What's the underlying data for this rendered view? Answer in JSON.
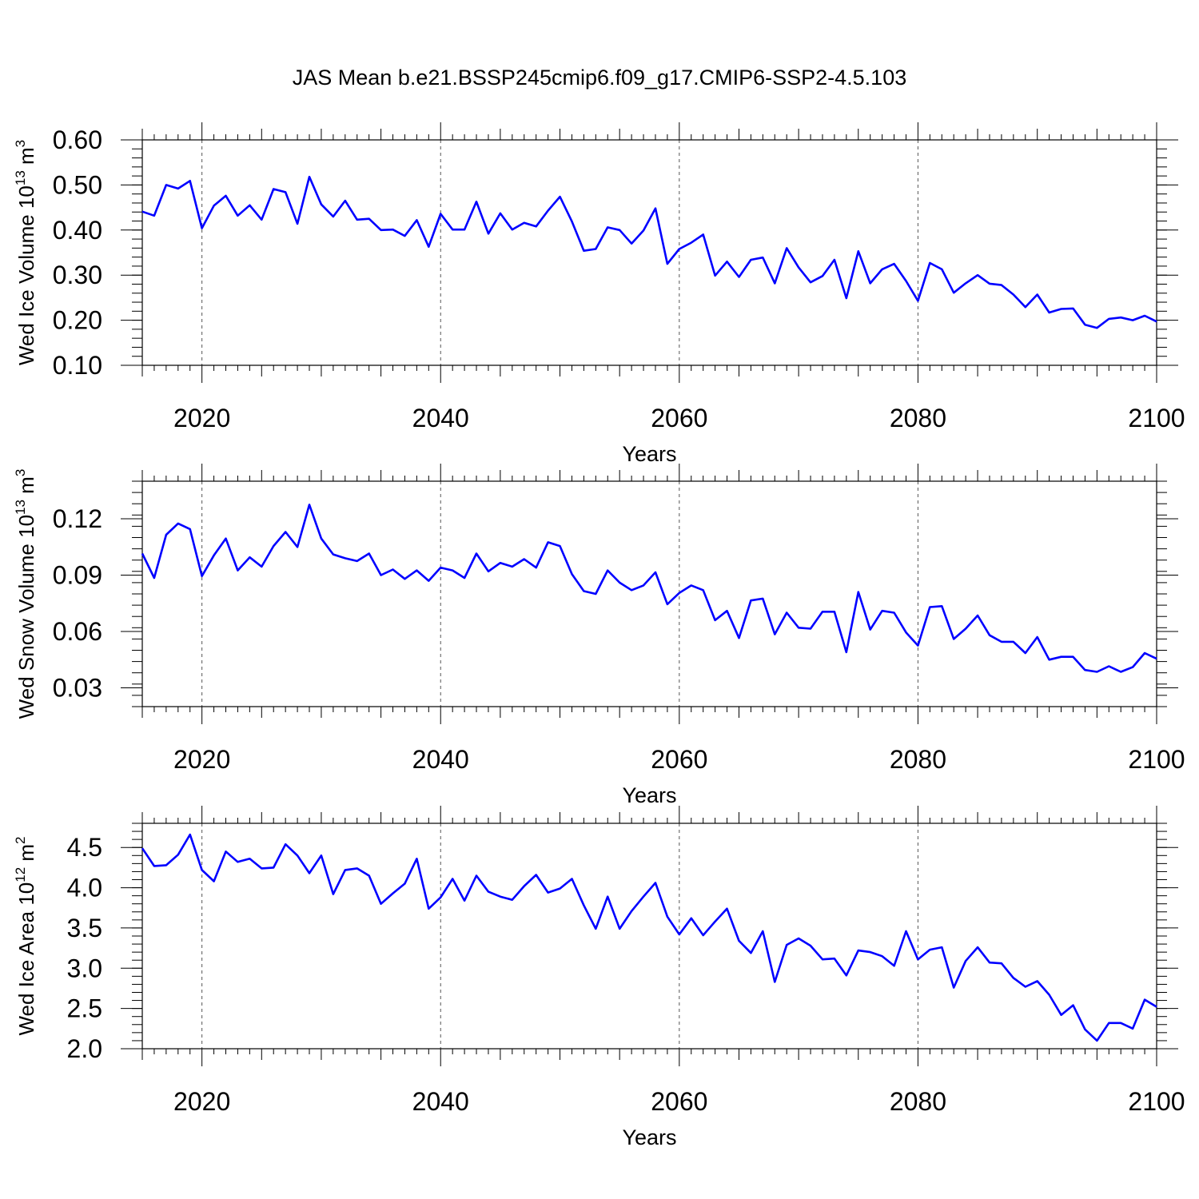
{
  "title": "JAS Mean b.e21.BSSP245cmip6.f09_g17.CMIP6-SSP2-4.5.103",
  "line_color": "#0000ff",
  "chart_data": [
    {
      "type": "line",
      "xlabel": "Years",
      "ylabel": {
        "base": "Wed Ice Volume 10",
        "exp": "13",
        "unit": " m",
        "unit_exp": "3"
      },
      "xlim": [
        2015,
        2100
      ],
      "ylim": [
        0.1,
        0.6
      ],
      "xticks": [
        2020,
        2040,
        2060,
        2080,
        2100
      ],
      "yticks": [
        0.1,
        0.2,
        0.3,
        0.4,
        0.5,
        0.6
      ],
      "ytick_labels": [
        "0.10",
        "0.20",
        "0.30",
        "0.40",
        "0.50",
        "0.60"
      ],
      "x_start": 2015,
      "series": [
        {
          "values": [
            0.441,
            0.432,
            0.5,
            0.492,
            0.509,
            0.404,
            0.454,
            0.476,
            0.432,
            0.455,
            0.423,
            0.491,
            0.484,
            0.414,
            0.518,
            0.457,
            0.43,
            0.465,
            0.423,
            0.425,
            0.4,
            0.401,
            0.387,
            0.422,
            0.363,
            0.436,
            0.401,
            0.401,
            0.463,
            0.392,
            0.437,
            0.401,
            0.416,
            0.408,
            0.443,
            0.474,
            0.419,
            0.354,
            0.358,
            0.406,
            0.4,
            0.37,
            0.399,
            0.448,
            0.325,
            0.358,
            0.372,
            0.39,
            0.299,
            0.33,
            0.296,
            0.334,
            0.339,
            0.282,
            0.36,
            0.317,
            0.284,
            0.298,
            0.334,
            0.249,
            0.353,
            0.282,
            0.313,
            0.325,
            0.287,
            0.243,
            0.327,
            0.313,
            0.261,
            0.282,
            0.3,
            0.281,
            0.278,
            0.257,
            0.229,
            0.257,
            0.217,
            0.225,
            0.226,
            0.19,
            0.183,
            0.203,
            0.206,
            0.2,
            0.21,
            0.197
          ]
        }
      ]
    },
    {
      "type": "line",
      "xlabel": "Years",
      "ylabel": {
        "base": "Wed Snow Volume 10",
        "exp": "13",
        "unit": " m",
        "unit_exp": "3"
      },
      "xlim": [
        2015,
        2100
      ],
      "ylim": [
        0.02,
        0.14
      ],
      "xticks": [
        2020,
        2040,
        2060,
        2080,
        2100
      ],
      "yticks": [
        0.03,
        0.06,
        0.09,
        0.12
      ],
      "ytick_labels": [
        "0.03",
        "0.06",
        "0.09",
        "0.12"
      ],
      "x_start": 2015,
      "series": [
        {
          "values": [
            0.1015,
            0.0885,
            0.1115,
            0.1175,
            0.1145,
            0.0895,
            0.1005,
            0.1095,
            0.0925,
            0.0995,
            0.0945,
            0.1055,
            0.113,
            0.105,
            0.1275,
            0.1095,
            0.101,
            0.099,
            0.0975,
            0.1015,
            0.09,
            0.093,
            0.088,
            0.0925,
            0.087,
            0.094,
            0.0925,
            0.0885,
            0.1015,
            0.092,
            0.0965,
            0.0945,
            0.0985,
            0.094,
            0.1075,
            0.1055,
            0.0905,
            0.0815,
            0.08,
            0.0925,
            0.086,
            0.082,
            0.0845,
            0.0915,
            0.0745,
            0.0805,
            0.0845,
            0.082,
            0.066,
            0.071,
            0.0565,
            0.0765,
            0.0775,
            0.0585,
            0.07,
            0.062,
            0.0615,
            0.0705,
            0.0705,
            0.049,
            0.081,
            0.061,
            0.071,
            0.07,
            0.0595,
            0.0525,
            0.073,
            0.0735,
            0.056,
            0.0615,
            0.0685,
            0.058,
            0.0545,
            0.0545,
            0.0485,
            0.057,
            0.045,
            0.0465,
            0.0465,
            0.0395,
            0.0385,
            0.0415,
            0.0385,
            0.041,
            0.0485,
            0.0455
          ]
        }
      ]
    },
    {
      "type": "line",
      "xlabel": "Years",
      "ylabel": {
        "base": "Wed Ice Area 10",
        "exp": "12",
        "unit": " m",
        "unit_exp": "2"
      },
      "xlim": [
        2015,
        2100
      ],
      "ylim": [
        2.0,
        4.8
      ],
      "xticks": [
        2020,
        2040,
        2060,
        2080,
        2100
      ],
      "yticks": [
        2.0,
        2.5,
        3.0,
        3.5,
        4.0,
        4.5
      ],
      "ytick_labels": [
        "2.0",
        "2.5",
        "3.0",
        "3.5",
        "4.0",
        "4.5"
      ],
      "x_start": 2015,
      "series": [
        {
          "values": [
            4.49,
            4.27,
            4.28,
            4.41,
            4.66,
            4.22,
            4.08,
            4.45,
            4.32,
            4.36,
            4.24,
            4.25,
            4.54,
            4.4,
            4.18,
            4.4,
            3.92,
            4.22,
            4.24,
            4.15,
            3.8,
            3.93,
            4.05,
            4.36,
            3.74,
            3.88,
            4.11,
            3.84,
            4.15,
            3.95,
            3.89,
            3.85,
            4.02,
            4.16,
            3.94,
            3.99,
            4.11,
            3.78,
            3.49,
            3.89,
            3.49,
            3.71,
            3.89,
            4.06,
            3.64,
            3.42,
            3.62,
            3.41,
            3.58,
            3.74,
            3.34,
            3.19,
            3.46,
            2.83,
            3.29,
            3.37,
            3.28,
            3.11,
            3.12,
            2.91,
            3.22,
            3.2,
            3.15,
            3.03,
            3.46,
            3.11,
            3.23,
            3.26,
            2.76,
            3.09,
            3.26,
            3.07,
            3.06,
            2.88,
            2.77,
            2.84,
            2.67,
            2.42,
            2.54,
            2.24,
            2.1,
            2.32,
            2.32,
            2.25,
            2.61,
            2.52
          ]
        }
      ]
    }
  ]
}
